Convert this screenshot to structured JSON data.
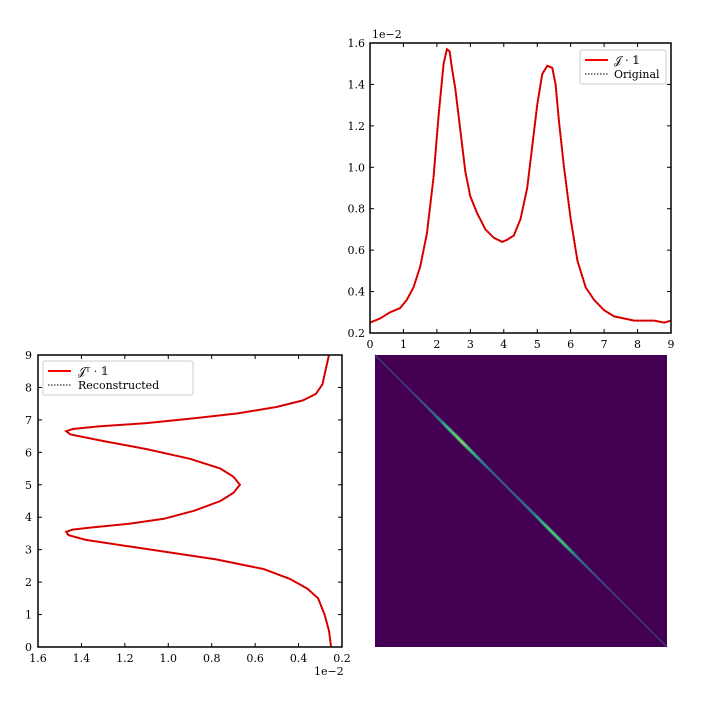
{
  "chart_data": [
    {
      "type": "line",
      "panel": "top-right",
      "xlim": [
        0,
        9
      ],
      "ylim": [
        0.2,
        1.6
      ],
      "x_ticks": [
        "0",
        "1",
        "2",
        "3",
        "4",
        "5",
        "6",
        "7",
        "8",
        "9"
      ],
      "y_ticks": [
        "0.2",
        "0.4",
        "0.6",
        "0.8",
        "1.0",
        "1.2",
        "1.4",
        "1.6"
      ],
      "y_offset_label": "1e−2",
      "legend_position": "top-right",
      "series": [
        {
          "name": "𝒥 · 𝟙",
          "color": "#ff0000",
          "style": "solid",
          "x": [
            0,
            0.3,
            0.6,
            0.9,
            1.1,
            1.3,
            1.5,
            1.7,
            1.9,
            2.05,
            2.2,
            2.3,
            2.38,
            2.45,
            2.55,
            2.7,
            2.85,
            3.0,
            3.2,
            3.45,
            3.7,
            3.95,
            4.1,
            4.3,
            4.5,
            4.7,
            4.85,
            5.0,
            5.15,
            5.3,
            5.45,
            5.55,
            5.65,
            5.8,
            6.0,
            6.2,
            6.45,
            6.7,
            7.0,
            7.3,
            7.6,
            7.9,
            8.2,
            8.5,
            8.8,
            9.0
          ],
          "y": [
            0.25,
            0.27,
            0.3,
            0.32,
            0.36,
            0.42,
            0.52,
            0.68,
            0.95,
            1.25,
            1.5,
            1.57,
            1.56,
            1.48,
            1.38,
            1.18,
            0.98,
            0.86,
            0.78,
            0.7,
            0.66,
            0.64,
            0.65,
            0.67,
            0.75,
            0.9,
            1.1,
            1.3,
            1.45,
            1.49,
            1.48,
            1.4,
            1.22,
            1.0,
            0.75,
            0.55,
            0.42,
            0.36,
            0.31,
            0.28,
            0.27,
            0.26,
            0.26,
            0.26,
            0.25,
            0.26
          ]
        },
        {
          "name": "Original",
          "color": "#000000",
          "style": "dotted",
          "x": [
            0,
            0.3,
            0.6,
            0.9,
            1.1,
            1.3,
            1.5,
            1.7,
            1.9,
            2.05,
            2.2,
            2.3,
            2.38,
            2.45,
            2.55,
            2.7,
            2.85,
            3.0,
            3.2,
            3.45,
            3.7,
            3.95,
            4.1,
            4.3,
            4.5,
            4.7,
            4.85,
            5.0,
            5.15,
            5.3,
            5.45,
            5.55,
            5.65,
            5.8,
            6.0,
            6.2,
            6.45,
            6.7,
            7.0,
            7.3,
            7.6,
            7.9,
            8.2,
            8.5,
            8.8,
            9.0
          ],
          "y": [
            0.25,
            0.27,
            0.3,
            0.32,
            0.36,
            0.42,
            0.52,
            0.68,
            0.95,
            1.25,
            1.5,
            1.57,
            1.56,
            1.48,
            1.38,
            1.18,
            0.98,
            0.86,
            0.78,
            0.7,
            0.66,
            0.64,
            0.65,
            0.67,
            0.75,
            0.9,
            1.1,
            1.3,
            1.45,
            1.49,
            1.48,
            1.4,
            1.22,
            1.0,
            0.75,
            0.55,
            0.42,
            0.36,
            0.31,
            0.28,
            0.27,
            0.26,
            0.26,
            0.26,
            0.25,
            0.26
          ]
        }
      ]
    },
    {
      "type": "line",
      "panel": "bottom-left",
      "orientation": "vertical",
      "xlim": [
        1.6,
        0.2
      ],
      "x_inverted": true,
      "ylim": [
        0,
        9
      ],
      "x_ticks": [
        "1.6",
        "1.4",
        "1.2",
        "1.0",
        "0.8",
        "0.6",
        "0.4",
        "0.2"
      ],
      "y_ticks": [
        "0",
        "1",
        "2",
        "3",
        "4",
        "5",
        "6",
        "7",
        "8",
        "9"
      ],
      "x_offset_label": "1e−2",
      "legend_position": "top-left",
      "series": [
        {
          "name": "𝒥ᵀ · 𝟙",
          "color": "#ff0000",
          "style": "solid",
          "y": [
            0,
            0.5,
            1.0,
            1.5,
            1.8,
            2.1,
            2.4,
            2.7,
            2.9,
            3.1,
            3.3,
            3.45,
            3.55,
            3.62,
            3.68,
            3.8,
            3.95,
            4.2,
            4.5,
            4.75,
            5.0,
            5.25,
            5.5,
            5.8,
            6.1,
            6.35,
            6.55,
            6.65,
            6.72,
            6.8,
            6.9,
            7.05,
            7.2,
            7.4,
            7.6,
            7.8,
            8.1,
            8.4,
            8.7,
            9.0
          ],
          "x": [
            0.25,
            0.26,
            0.28,
            0.31,
            0.36,
            0.44,
            0.56,
            0.78,
            0.98,
            1.18,
            1.38,
            1.46,
            1.47,
            1.44,
            1.36,
            1.18,
            1.02,
            0.88,
            0.76,
            0.7,
            0.67,
            0.7,
            0.76,
            0.9,
            1.1,
            1.3,
            1.45,
            1.47,
            1.44,
            1.32,
            1.1,
            0.88,
            0.68,
            0.5,
            0.38,
            0.32,
            0.29,
            0.28,
            0.27,
            0.26
          ]
        },
        {
          "name": "Reconstructed",
          "color": "#000000",
          "style": "dotted",
          "y": [
            0,
            0.5,
            1.0,
            1.5,
            1.8,
            2.1,
            2.4,
            2.7,
            2.9,
            3.1,
            3.3,
            3.45,
            3.55,
            3.62,
            3.68,
            3.8,
            3.95,
            4.2,
            4.5,
            4.75,
            5.0,
            5.25,
            5.5,
            5.8,
            6.1,
            6.35,
            6.55,
            6.65,
            6.72,
            6.8,
            6.9,
            7.05,
            7.2,
            7.4,
            7.6,
            7.8,
            8.1,
            8.4,
            8.7,
            9.0
          ],
          "x": [
            0.25,
            0.26,
            0.28,
            0.31,
            0.36,
            0.44,
            0.56,
            0.78,
            0.98,
            1.18,
            1.38,
            1.46,
            1.47,
            1.44,
            1.36,
            1.18,
            1.02,
            0.88,
            0.76,
            0.7,
            0.67,
            0.7,
            0.76,
            0.9,
            1.1,
            1.3,
            1.45,
            1.47,
            1.44,
            1.32,
            1.1,
            0.88,
            0.68,
            0.5,
            0.38,
            0.32,
            0.29,
            0.28,
            0.27,
            0.26
          ]
        }
      ]
    },
    {
      "type": "heatmap",
      "panel": "bottom-right",
      "background_color": "#440154",
      "colormap": "viridis",
      "description_grid": false,
      "diagonal": {
        "direction": "top-left-to-bottom-right",
        "intensity_profile_t": [
          0,
          0.05,
          0.1,
          0.15,
          0.2,
          0.25,
          0.3,
          0.35,
          0.4,
          0.45,
          0.5,
          0.55,
          0.6,
          0.65,
          0.7,
          0.75,
          0.8,
          0.85,
          0.9,
          0.95,
          1.0
        ],
        "intensity": [
          0.1,
          0.12,
          0.15,
          0.22,
          0.4,
          0.7,
          0.85,
          0.6,
          0.35,
          0.3,
          0.4,
          0.55,
          0.75,
          0.7,
          0.45,
          0.25,
          0.18,
          0.14,
          0.12,
          0.1,
          0.1
        ]
      }
    }
  ]
}
